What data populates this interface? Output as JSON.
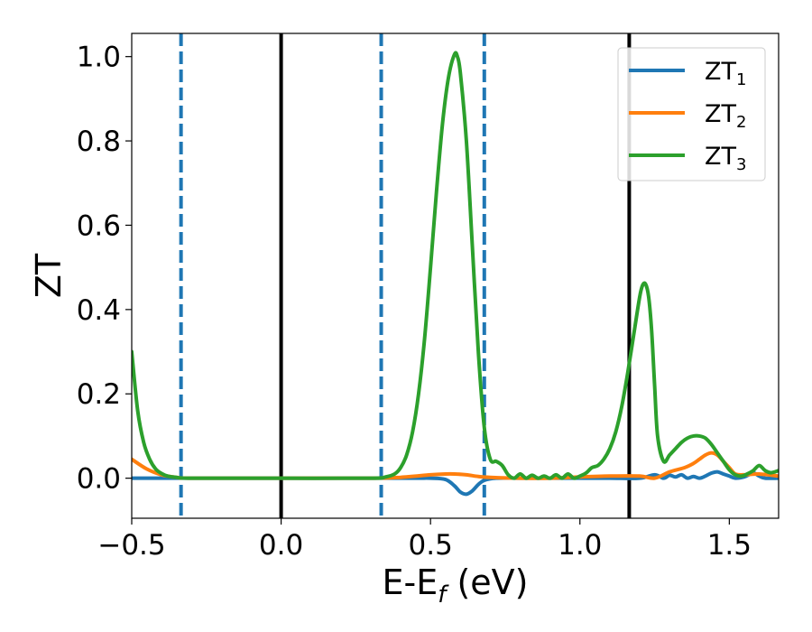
{
  "chart_data": {
    "type": "line",
    "xlabel_main": "E-E",
    "xlabel_sub": "f",
    "xlabel_unit": " (eV)",
    "ylabel": "ZT",
    "xlim": [
      -0.5,
      1.665
    ],
    "ylim": [
      -0.095,
      1.055
    ],
    "xticks": [
      -0.5,
      0.0,
      0.5,
      1.0,
      1.5
    ],
    "xtick_labels": [
      "−0.5",
      "0.0",
      "0.5",
      "1.0",
      "1.5"
    ],
    "yticks": [
      0.0,
      0.2,
      0.4,
      0.6,
      0.8,
      1.0
    ],
    "ytick_labels": [
      "0.0",
      "0.2",
      "0.4",
      "0.6",
      "0.8",
      "1.0"
    ],
    "grid": false,
    "legend": {
      "placement": "top-right"
    },
    "vlines": [
      {
        "x": -0.335,
        "style": "dashed",
        "color": "#1f77b4"
      },
      {
        "x": 0.0,
        "style": "solid",
        "color": "#000000"
      },
      {
        "x": 0.335,
        "style": "dashed",
        "color": "#1f77b4"
      },
      {
        "x": 0.68,
        "style": "dashed",
        "color": "#1f77b4"
      },
      {
        "x": 1.165,
        "style": "solid",
        "color": "#000000"
      }
    ],
    "series": [
      {
        "name_main": "ZT",
        "name_sub": "1",
        "color": "#1f77b4",
        "x": [
          -0.5,
          -0.3,
          0.0,
          0.3,
          0.45,
          0.5,
          0.55,
          0.58,
          0.6,
          0.62,
          0.64,
          0.66,
          0.68,
          0.72,
          0.8,
          0.9,
          1.0,
          1.1,
          1.2,
          1.25,
          1.28,
          1.3,
          1.32,
          1.34,
          1.36,
          1.38,
          1.4,
          1.42,
          1.44,
          1.46,
          1.48,
          1.5,
          1.52,
          1.55,
          1.58,
          1.6,
          1.62,
          1.665
        ],
        "y": [
          0.0,
          0.0,
          0.0,
          0.0,
          0.0,
          0.0,
          -0.003,
          -0.018,
          -0.033,
          -0.038,
          -0.03,
          -0.015,
          -0.005,
          0.0,
          0.0,
          0.0,
          0.0,
          0.0,
          0.0,
          0.008,
          0.0,
          0.007,
          0.003,
          0.008,
          0.0,
          0.004,
          0.0,
          0.005,
          0.012,
          0.015,
          0.01,
          0.005,
          0.0,
          0.003,
          0.012,
          0.005,
          0.0,
          0.0
        ]
      },
      {
        "name_main": "ZT",
        "name_sub": "2",
        "color": "#ff7f0e",
        "x": [
          -0.5,
          -0.45,
          -0.4,
          -0.35,
          -0.3,
          0.0,
          0.3,
          0.4,
          0.5,
          0.55,
          0.58,
          0.62,
          0.66,
          0.7,
          0.8,
          0.9,
          1.0,
          1.1,
          1.2,
          1.25,
          1.3,
          1.35,
          1.38,
          1.4,
          1.42,
          1.44,
          1.46,
          1.48,
          1.5,
          1.52,
          1.55,
          1.6,
          1.665
        ],
        "y": [
          0.045,
          0.022,
          0.008,
          0.002,
          0.0,
          0.0,
          0.0,
          0.002,
          0.008,
          0.01,
          0.01,
          0.008,
          0.004,
          0.002,
          0.0,
          0.0,
          0.003,
          0.005,
          0.005,
          0.0,
          0.015,
          0.025,
          0.035,
          0.045,
          0.055,
          0.06,
          0.055,
          0.04,
          0.025,
          0.01,
          0.008,
          0.01,
          0.005
        ]
      },
      {
        "name_main": "ZT",
        "name_sub": "3",
        "color": "#2ca02c",
        "x": [
          -0.5,
          -0.48,
          -0.46,
          -0.44,
          -0.42,
          -0.4,
          -0.38,
          -0.35,
          -0.3,
          0.0,
          0.3,
          0.35,
          0.38,
          0.4,
          0.42,
          0.44,
          0.46,
          0.48,
          0.5,
          0.52,
          0.54,
          0.56,
          0.58,
          0.59,
          0.6,
          0.62,
          0.64,
          0.66,
          0.68,
          0.7,
          0.72,
          0.74,
          0.76,
          0.78,
          0.8,
          0.82,
          0.84,
          0.86,
          0.88,
          0.9,
          0.92,
          0.94,
          0.96,
          0.98,
          1.0,
          1.02,
          1.04,
          1.06,
          1.08,
          1.1,
          1.12,
          1.14,
          1.16,
          1.18,
          1.2,
          1.21,
          1.22,
          1.23,
          1.24,
          1.25,
          1.26,
          1.28,
          1.3,
          1.32,
          1.34,
          1.36,
          1.38,
          1.4,
          1.42,
          1.44,
          1.46,
          1.48,
          1.5,
          1.52,
          1.54,
          1.56,
          1.58,
          1.6,
          1.62,
          1.64,
          1.665
        ],
        "y": [
          0.3,
          0.16,
          0.085,
          0.045,
          0.022,
          0.011,
          0.005,
          0.002,
          0.0,
          0.0,
          0.0,
          0.003,
          0.01,
          0.025,
          0.055,
          0.11,
          0.2,
          0.33,
          0.5,
          0.68,
          0.84,
          0.95,
          1.005,
          1.0,
          0.96,
          0.8,
          0.55,
          0.3,
          0.12,
          0.045,
          0.04,
          0.03,
          0.008,
          0.0,
          0.01,
          0.0,
          0.007,
          0.0,
          0.005,
          0.0,
          0.008,
          0.0,
          0.01,
          0.0,
          0.005,
          0.012,
          0.025,
          0.03,
          0.045,
          0.07,
          0.11,
          0.17,
          0.25,
          0.34,
          0.43,
          0.458,
          0.46,
          0.43,
          0.35,
          0.22,
          0.1,
          0.04,
          0.055,
          0.07,
          0.085,
          0.095,
          0.1,
          0.1,
          0.095,
          0.08,
          0.06,
          0.04,
          0.02,
          0.008,
          0.005,
          0.01,
          0.018,
          0.03,
          0.018,
          0.013,
          0.018
        ]
      }
    ]
  }
}
